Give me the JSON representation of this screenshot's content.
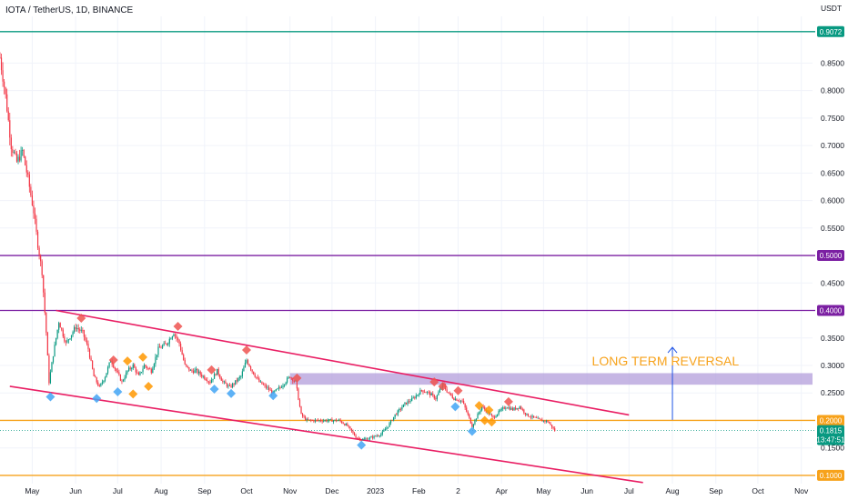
{
  "header": {
    "symbol_title": "IOTA / TetherUS, 1D, BINANCE"
  },
  "chart_data": {
    "type": "candlestick",
    "title": "IOTA / TetherUS, 1D, BINANCE",
    "y_unit": "USDT",
    "ylim": [
      0.085,
      0.935
    ],
    "y_ticks": [
      "0.8500",
      "0.8000",
      "0.7500",
      "0.7000",
      "0.6500",
      "0.6000",
      "0.5500",
      "0.5000",
      "0.4500",
      "0.4000",
      "0.3500",
      "0.3000",
      "0.2500",
      "0.2000",
      "0.1500",
      "0.1000"
    ],
    "x_ticks": [
      "May",
      "Jun",
      "Jul",
      "Aug",
      "Sep",
      "Oct",
      "Nov",
      "Dec",
      "2023",
      "Feb",
      "2",
      "Apr",
      "May",
      "Jun",
      "Jul",
      "Aug",
      "Sep",
      "Oct",
      "Nov"
    ],
    "x_range": [
      "2022-04-08",
      "2023-11-09"
    ],
    "grid": true,
    "horizontal_levels": [
      {
        "value": 0.9072,
        "label": "0.9072",
        "color": "#089981"
      },
      {
        "value": 0.5,
        "label": "0.5000",
        "color": "#7b1fa2"
      },
      {
        "value": 0.4,
        "label": "0.4000",
        "color": "#7b1fa2"
      },
      {
        "value": 0.2,
        "label": "0.2000",
        "color": "#f7a21b"
      },
      {
        "value": 0.1,
        "label": "0.1000",
        "color": "#f7a21b"
      }
    ],
    "last_price": {
      "value": 0.1815,
      "label": "0.1815",
      "countdown": "13:47:51",
      "color": "#089981"
    },
    "channel_lines": [
      {
        "from": [
          "2022-05-18",
          0.4
        ],
        "to": [
          "2023-07-01",
          0.21
        ],
        "color": "#e91e63"
      },
      {
        "from": [
          "2022-04-15",
          0.262
        ],
        "to": [
          "2023-07-11",
          0.087
        ],
        "color": "#e91e63"
      }
    ],
    "zone": {
      "x_from": "2022-11-01",
      "x_to": "2023-11-09",
      "y_from": 0.265,
      "y_to": 0.286,
      "color": "#b39ddb"
    },
    "arrow": {
      "x": "2023-08-01",
      "from": 0.201,
      "to": 0.333,
      "color": "#1e53e5"
    },
    "annotation": {
      "text": "LONG TERM REVERSAL",
      "x": "2023-07-20",
      "y": 0.3,
      "color": "#f7a21b"
    },
    "price_path": [
      [
        "2022-04-08",
        0.86
      ],
      [
        "2022-04-12",
        0.79
      ],
      [
        "2022-04-16",
        0.7
      ],
      [
        "2022-04-20",
        0.67
      ],
      [
        "2022-04-24",
        0.69
      ],
      [
        "2022-04-28",
        0.64
      ],
      [
        "2022-05-02",
        0.58
      ],
      [
        "2022-05-05",
        0.52
      ],
      [
        "2022-05-08",
        0.47
      ],
      [
        "2022-05-11",
        0.36
      ],
      [
        "2022-05-13",
        0.27
      ],
      [
        "2022-05-16",
        0.32
      ],
      [
        "2022-05-20",
        0.38
      ],
      [
        "2022-05-25",
        0.34
      ],
      [
        "2022-06-01",
        0.37
      ],
      [
        "2022-06-06",
        0.36
      ],
      [
        "2022-06-10",
        0.33
      ],
      [
        "2022-06-14",
        0.28
      ],
      [
        "2022-06-18",
        0.26
      ],
      [
        "2022-06-22",
        0.28
      ],
      [
        "2022-06-26",
        0.31
      ],
      [
        "2022-06-30",
        0.29
      ],
      [
        "2022-07-04",
        0.27
      ],
      [
        "2022-07-08",
        0.29
      ],
      [
        "2022-07-12",
        0.3
      ],
      [
        "2022-07-16",
        0.28
      ],
      [
        "2022-07-20",
        0.3
      ],
      [
        "2022-07-25",
        0.29
      ],
      [
        "2022-07-30",
        0.33
      ],
      [
        "2022-08-05",
        0.34
      ],
      [
        "2022-08-10",
        0.36
      ],
      [
        "2022-08-14",
        0.34
      ],
      [
        "2022-08-18",
        0.3
      ],
      [
        "2022-08-22",
        0.29
      ],
      [
        "2022-08-26",
        0.29
      ],
      [
        "2022-08-31",
        0.28
      ],
      [
        "2022-09-05",
        0.27
      ],
      [
        "2022-09-10",
        0.29
      ],
      [
        "2022-09-14",
        0.27
      ],
      [
        "2022-09-19",
        0.26
      ],
      [
        "2022-09-23",
        0.27
      ],
      [
        "2022-09-27",
        0.28
      ],
      [
        "2022-10-01",
        0.31
      ],
      [
        "2022-10-05",
        0.29
      ],
      [
        "2022-10-10",
        0.27
      ],
      [
        "2022-10-15",
        0.26
      ],
      [
        "2022-10-20",
        0.25
      ],
      [
        "2022-10-25",
        0.26
      ],
      [
        "2022-11-01",
        0.28
      ],
      [
        "2022-11-05",
        0.27
      ],
      [
        "2022-11-09",
        0.21
      ],
      [
        "2022-11-13",
        0.2
      ],
      [
        "2022-11-20",
        0.2
      ],
      [
        "2022-11-28",
        0.2
      ],
      [
        "2022-12-06",
        0.2
      ],
      [
        "2022-12-12",
        0.19
      ],
      [
        "2022-12-18",
        0.17
      ],
      [
        "2022-12-22",
        0.165
      ],
      [
        "2022-12-28",
        0.168
      ],
      [
        "2023-01-05",
        0.175
      ],
      [
        "2023-01-10",
        0.19
      ],
      [
        "2023-01-15",
        0.21
      ],
      [
        "2023-01-22",
        0.23
      ],
      [
        "2023-01-28",
        0.24
      ],
      [
        "2023-02-03",
        0.255
      ],
      [
        "2023-02-08",
        0.25
      ],
      [
        "2023-02-13",
        0.24
      ],
      [
        "2023-02-18",
        0.265
      ],
      [
        "2023-02-22",
        0.25
      ],
      [
        "2023-02-26",
        0.24
      ],
      [
        "2023-03-04",
        0.235
      ],
      [
        "2023-03-08",
        0.21
      ],
      [
        "2023-03-11",
        0.19
      ],
      [
        "2023-03-15",
        0.21
      ],
      [
        "2023-03-18",
        0.225
      ],
      [
        "2023-03-22",
        0.215
      ],
      [
        "2023-03-26",
        0.205
      ],
      [
        "2023-03-30",
        0.215
      ],
      [
        "2023-04-04",
        0.225
      ],
      [
        "2023-04-09",
        0.22
      ],
      [
        "2023-04-14",
        0.225
      ],
      [
        "2023-04-19",
        0.21
      ],
      [
        "2023-04-24",
        0.205
      ],
      [
        "2023-04-29",
        0.2
      ],
      [
        "2023-05-04",
        0.198
      ],
      [
        "2023-05-09",
        0.1815
      ]
    ],
    "markers": [
      {
        "date": "2022-05-14",
        "value": 0.243,
        "color": "#42a5f5"
      },
      {
        "date": "2022-06-05",
        "value": 0.386,
        "color": "#ef5350"
      },
      {
        "date": "2022-06-16",
        "value": 0.24,
        "color": "#42a5f5"
      },
      {
        "date": "2022-06-28",
        "value": 0.31,
        "color": "#ef5350"
      },
      {
        "date": "2022-07-01",
        "value": 0.252,
        "color": "#42a5f5"
      },
      {
        "date": "2022-07-08",
        "value": 0.308,
        "color": "#ff9800"
      },
      {
        "date": "2022-07-12",
        "value": 0.248,
        "color": "#ff9800"
      },
      {
        "date": "2022-07-19",
        "value": 0.315,
        "color": "#ff9800"
      },
      {
        "date": "2022-07-23",
        "value": 0.262,
        "color": "#ff9800"
      },
      {
        "date": "2022-08-13",
        "value": 0.371,
        "color": "#ef5350"
      },
      {
        "date": "2022-09-06",
        "value": 0.292,
        "color": "#ef5350"
      },
      {
        "date": "2022-09-08",
        "value": 0.257,
        "color": "#42a5f5"
      },
      {
        "date": "2022-09-20",
        "value": 0.249,
        "color": "#42a5f5"
      },
      {
        "date": "2022-10-01",
        "value": 0.328,
        "color": "#ef5350"
      },
      {
        "date": "2022-10-20",
        "value": 0.245,
        "color": "#42a5f5"
      },
      {
        "date": "2022-11-06",
        "value": 0.277,
        "color": "#ef5350"
      },
      {
        "date": "2022-12-22",
        "value": 0.155,
        "color": "#42a5f5"
      },
      {
        "date": "2023-02-12",
        "value": 0.27,
        "color": "#ef5350"
      },
      {
        "date": "2023-02-18",
        "value": 0.262,
        "color": "#ef5350"
      },
      {
        "date": "2023-02-27",
        "value": 0.225,
        "color": "#42a5f5"
      },
      {
        "date": "2023-03-01",
        "value": 0.254,
        "color": "#ef5350"
      },
      {
        "date": "2023-03-11",
        "value": 0.18,
        "color": "#42a5f5"
      },
      {
        "date": "2023-03-16",
        "value": 0.227,
        "color": "#ff9800"
      },
      {
        "date": "2023-03-20",
        "value": 0.2,
        "color": "#ff9800"
      },
      {
        "date": "2023-03-23",
        "value": 0.219,
        "color": "#ff9800"
      },
      {
        "date": "2023-03-25",
        "value": 0.197,
        "color": "#ff9800"
      },
      {
        "date": "2023-04-06",
        "value": 0.234,
        "color": "#ef5350"
      }
    ],
    "colors": {
      "up": "#089981",
      "down": "#f23645",
      "grid": "#f0f3fa"
    }
  }
}
